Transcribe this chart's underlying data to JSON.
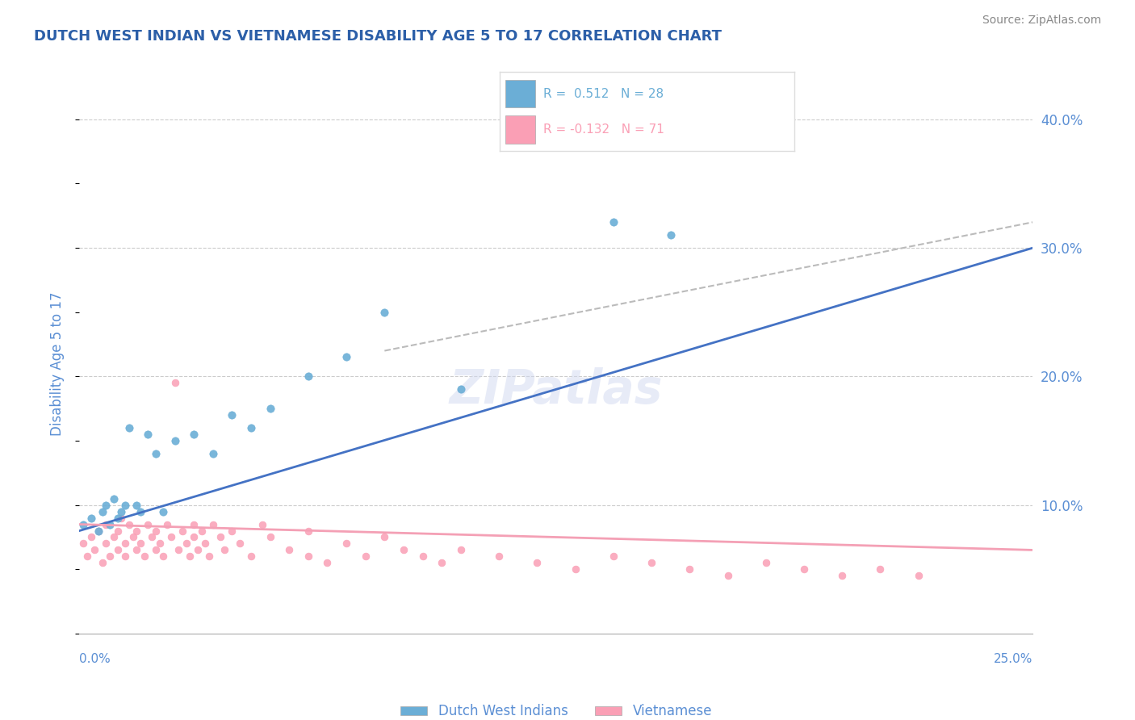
{
  "title": "DUTCH WEST INDIAN VS VIETNAMESE DISABILITY AGE 5 TO 17 CORRELATION CHART",
  "source": "Source: ZipAtlas.com",
  "ylabel": "Disability Age 5 to 17",
  "xmin": 0.0,
  "xmax": 0.25,
  "ymin": 0.0,
  "ymax": 0.42,
  "yticks": [
    0.0,
    0.1,
    0.2,
    0.3,
    0.4
  ],
  "ytick_labels": [
    "",
    "10.0%",
    "20.0%",
    "30.0%",
    "40.0%"
  ],
  "r_dwi": 0.512,
  "n_dwi": 28,
  "r_viet": -0.132,
  "n_viet": 71,
  "color_dwi": "#6baed6",
  "color_viet": "#fa9fb5",
  "color_title": "#2c5fa8",
  "color_source": "#888888",
  "color_axis": "#5b8fd4",
  "color_trendline_dwi": "#4472c4",
  "color_trendline_viet": "#f4a0b5",
  "color_trendline_gray": "#bbbbbb",
  "background_color": "#ffffff",
  "grid_color": "#cccccc",
  "dwi_x": [
    0.001,
    0.003,
    0.005,
    0.006,
    0.007,
    0.008,
    0.009,
    0.01,
    0.011,
    0.012,
    0.013,
    0.015,
    0.016,
    0.018,
    0.02,
    0.022,
    0.025,
    0.03,
    0.035,
    0.04,
    0.045,
    0.05,
    0.06,
    0.07,
    0.08,
    0.1,
    0.14,
    0.155
  ],
  "dwi_y": [
    0.085,
    0.09,
    0.08,
    0.095,
    0.1,
    0.085,
    0.105,
    0.09,
    0.095,
    0.1,
    0.16,
    0.1,
    0.095,
    0.155,
    0.14,
    0.095,
    0.15,
    0.155,
    0.14,
    0.17,
    0.16,
    0.175,
    0.2,
    0.215,
    0.25,
    0.19,
    0.32,
    0.31
  ],
  "viet_x": [
    0.001,
    0.002,
    0.003,
    0.004,
    0.005,
    0.006,
    0.007,
    0.007,
    0.008,
    0.009,
    0.01,
    0.01,
    0.011,
    0.012,
    0.012,
    0.013,
    0.014,
    0.015,
    0.015,
    0.016,
    0.017,
    0.018,
    0.019,
    0.02,
    0.02,
    0.021,
    0.022,
    0.023,
    0.024,
    0.025,
    0.026,
    0.027,
    0.028,
    0.029,
    0.03,
    0.03,
    0.031,
    0.032,
    0.033,
    0.034,
    0.035,
    0.037,
    0.038,
    0.04,
    0.042,
    0.045,
    0.048,
    0.05,
    0.055,
    0.06,
    0.06,
    0.065,
    0.07,
    0.075,
    0.08,
    0.085,
    0.09,
    0.095,
    0.1,
    0.11,
    0.12,
    0.13,
    0.14,
    0.15,
    0.16,
    0.17,
    0.18,
    0.19,
    0.2,
    0.21,
    0.22
  ],
  "viet_y": [
    0.07,
    0.06,
    0.075,
    0.065,
    0.08,
    0.055,
    0.085,
    0.07,
    0.06,
    0.075,
    0.08,
    0.065,
    0.09,
    0.07,
    0.06,
    0.085,
    0.075,
    0.065,
    0.08,
    0.07,
    0.06,
    0.085,
    0.075,
    0.065,
    0.08,
    0.07,
    0.06,
    0.085,
    0.075,
    0.195,
    0.065,
    0.08,
    0.07,
    0.06,
    0.085,
    0.075,
    0.065,
    0.08,
    0.07,
    0.06,
    0.085,
    0.075,
    0.065,
    0.08,
    0.07,
    0.06,
    0.085,
    0.075,
    0.065,
    0.06,
    0.08,
    0.055,
    0.07,
    0.06,
    0.075,
    0.065,
    0.06,
    0.055,
    0.065,
    0.06,
    0.055,
    0.05,
    0.06,
    0.055,
    0.05,
    0.045,
    0.055,
    0.05,
    0.045,
    0.05,
    0.045
  ]
}
